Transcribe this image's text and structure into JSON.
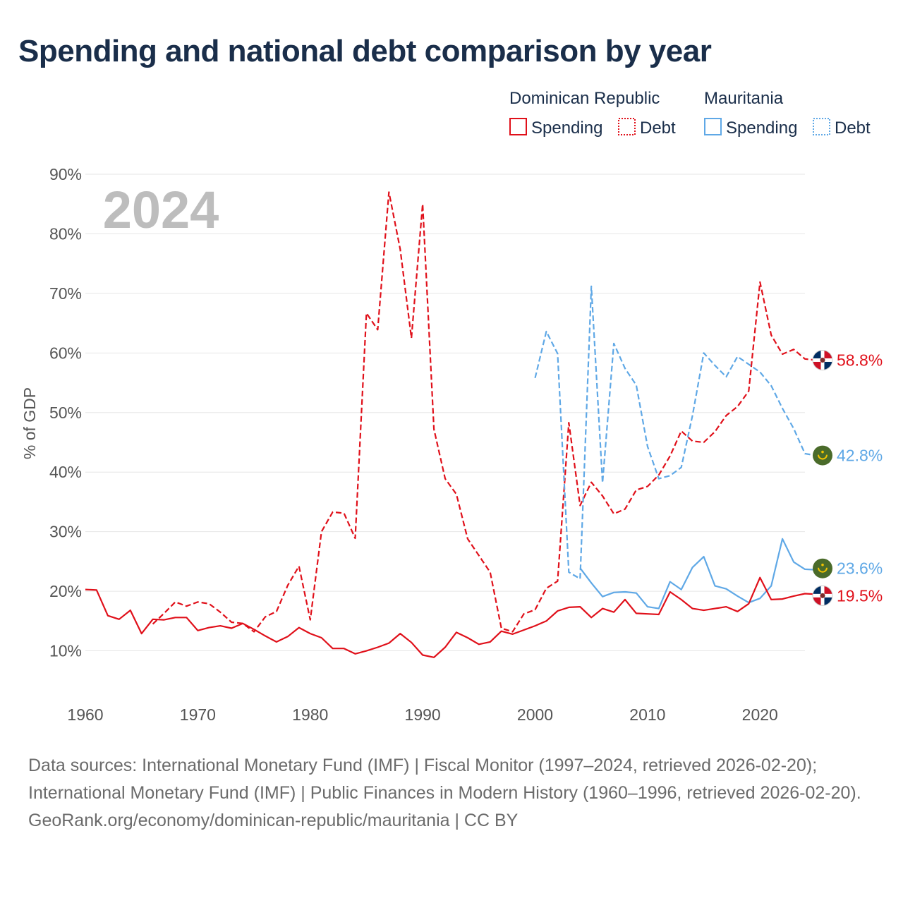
{
  "title": "Spending and national debt comparison by year",
  "year_label": "2024",
  "legend": {
    "groups": [
      {
        "country": "Dominican Republic",
        "color": "#e0101a",
        "items": [
          {
            "label": "Spending",
            "style": "solid"
          },
          {
            "label": "Debt",
            "style": "dotted"
          }
        ]
      },
      {
        "country": "Mauritania",
        "color": "#5fa8e6",
        "items": [
          {
            "label": "Spending",
            "style": "solid"
          },
          {
            "label": "Debt",
            "style": "dotted"
          }
        ]
      }
    ]
  },
  "chart_data": {
    "type": "line",
    "title": "Spending and national debt comparison by year",
    "xlabel": "",
    "ylabel": "% of GDP",
    "xlim": [
      1960,
      2024
    ],
    "ylim": [
      0,
      90
    ],
    "xticks": [
      {
        "value": 1960,
        "label": "1960"
      },
      {
        "value": 1970,
        "label": "1970"
      },
      {
        "value": 1980,
        "label": "1980"
      },
      {
        "value": 1990,
        "label": "1990"
      },
      {
        "value": 2000,
        "label": "2000"
      },
      {
        "value": 2010,
        "label": "2010"
      },
      {
        "value": 2020,
        "label": "2020"
      }
    ],
    "yticks": [
      {
        "value": 10,
        "label": "10%"
      },
      {
        "value": 20,
        "label": "20%"
      },
      {
        "value": 30,
        "label": "30%"
      },
      {
        "value": 40,
        "label": "40%"
      },
      {
        "value": 50,
        "label": "50%"
      },
      {
        "value": 60,
        "label": "60%"
      },
      {
        "value": 70,
        "label": "70%"
      },
      {
        "value": 80,
        "label": "80%"
      },
      {
        "value": 90,
        "label": "90%"
      }
    ],
    "grid": true,
    "series": [
      {
        "name": "Dominican Republic Debt",
        "color": "#e0101a",
        "dash": "dashed",
        "end_label": "58.8%",
        "flag": "dominican-republic",
        "start_year": 1966,
        "values": [
          14.5,
          16.3,
          18.2,
          17.5,
          18.2,
          17.9,
          16.5,
          14.8,
          14.6,
          13.2,
          15.7,
          16.6,
          21,
          24.2,
          15.2,
          30,
          33.3,
          33.1,
          28.9,
          66.7,
          63.9,
          87,
          77.4,
          62.5,
          85,
          47.2,
          38.9,
          36.3,
          28.8,
          26,
          23.2,
          13.8,
          13.2,
          16.2,
          16.9,
          20.5,
          21.7,
          48.3,
          34.4,
          38.3,
          36,
          33,
          33.8,
          37,
          37.6,
          39.5,
          42.7,
          46.9,
          45.2,
          45,
          46.8,
          49.5,
          51,
          53.6,
          71.9,
          63,
          59.8,
          60.6,
          59,
          58.8
        ]
      },
      {
        "name": "Mauritania Debt",
        "color": "#5fa8e6",
        "dash": "dashed",
        "end_label": "42.8%",
        "flag": "mauritania",
        "start_year": 2000,
        "values": [
          55.8,
          63.6,
          59.9,
          23.2,
          22.1,
          71.2,
          38.2,
          61.6,
          57.4,
          54.6,
          44.3,
          38.9,
          39.4,
          40.8,
          49.5,
          60,
          57.9,
          56,
          59.4,
          58.1,
          56.8,
          54.5,
          50.7,
          47.3,
          43.1,
          42.8
        ]
      },
      {
        "name": "Mauritania Spending",
        "color": "#5fa8e6",
        "dash": "solid",
        "end_label": "23.6%",
        "flag": "mauritania",
        "start_year": 2004,
        "values": [
          23.9,
          21.4,
          19.1,
          19.8,
          19.9,
          19.7,
          17.4,
          17.1,
          21.6,
          20.3,
          24,
          25.8,
          20.9,
          20.4,
          19.2,
          18.1,
          18.8,
          20.9,
          28.8,
          24.9,
          23.7,
          23.6
        ]
      },
      {
        "name": "Dominican Republic Spending",
        "color": "#e0101a",
        "dash": "solid",
        "end_label": "19.5%",
        "flag": "dominican-republic",
        "start_year": 1960,
        "values": [
          20.3,
          20.2,
          15.9,
          15.3,
          16.8,
          12.9,
          15.3,
          15.2,
          15.6,
          15.6,
          13.4,
          13.9,
          14.2,
          13.8,
          14.6,
          13.6,
          12.5,
          11.5,
          12.4,
          13.9,
          12.9,
          12.2,
          10.4,
          10.4,
          9.5,
          10,
          10.6,
          11.3,
          12.9,
          11.4,
          9.3,
          8.9,
          10.6,
          13.1,
          12.2,
          11.1,
          11.5,
          13.3,
          12.8,
          13.5,
          14.2,
          15,
          16.7,
          17.3,
          17.4,
          15.6,
          17.1,
          16.5,
          18.6,
          16.3,
          16.2,
          16.1,
          19.9,
          18.6,
          17.1,
          16.8,
          17.1,
          17.4,
          16.6,
          17.9,
          22.3,
          18.6,
          18.7,
          19.2,
          19.6,
          19.5
        ]
      }
    ]
  },
  "sources": {
    "line1": "Data sources: International Monetary Fund (IMF) | Fiscal Monitor (1997–2024, retrieved 2026-02-20); International Monetary Fund (IMF) | Public Finances in Modern History (1960–1996, retrieved 2026-02-20).",
    "line2": "GeoRank.org/economy/dominican-republic/mauritania | CC BY"
  }
}
